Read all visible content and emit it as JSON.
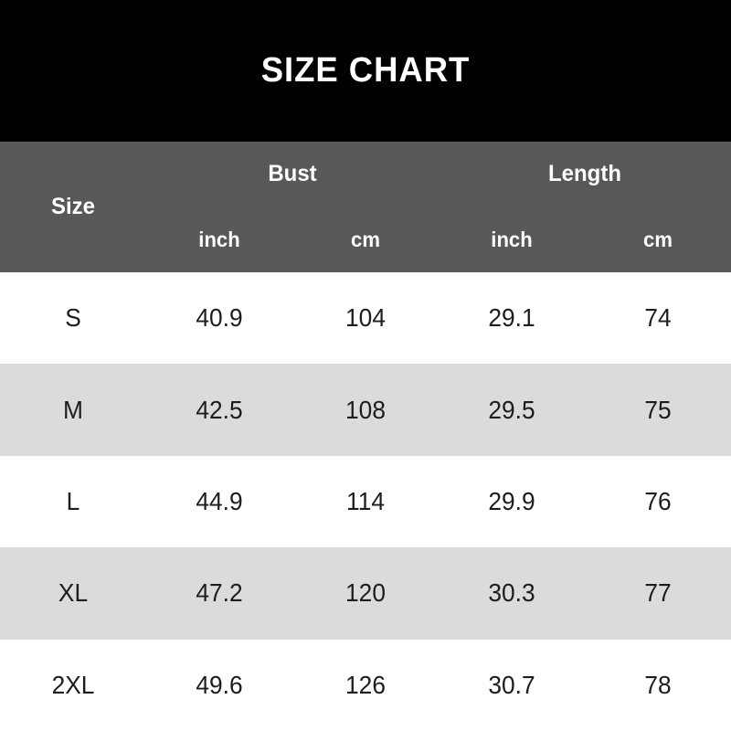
{
  "title": "SIZE CHART",
  "colors": {
    "banner_bg": "#000000",
    "banner_text": "#ffffff",
    "header_bg": "#58585a",
    "header_text": "#ffffff",
    "row_alt_bg": "#dbdbdb",
    "row_bg": "#ffffff",
    "data_text": "#1d1d1f"
  },
  "table": {
    "size_header": "Size",
    "groups": [
      {
        "label": "Bust",
        "units": [
          "inch",
          "cm"
        ]
      },
      {
        "label": "Length",
        "units": [
          "inch",
          "cm"
        ]
      }
    ],
    "rows": [
      {
        "size": "S",
        "bust_inch": "40.9",
        "bust_cm": "104",
        "length_inch": "29.1",
        "length_cm": "74"
      },
      {
        "size": "M",
        "bust_inch": "42.5",
        "bust_cm": "108",
        "length_inch": "29.5",
        "length_cm": "75"
      },
      {
        "size": "L",
        "bust_inch": "44.9",
        "bust_cm": "114",
        "length_inch": "29.9",
        "length_cm": "76"
      },
      {
        "size": "XL",
        "bust_inch": "47.2",
        "bust_cm": "120",
        "length_inch": "30.3",
        "length_cm": "77"
      },
      {
        "size": "2XL",
        "bust_inch": "49.6",
        "bust_cm": "126",
        "length_inch": "30.7",
        "length_cm": "78"
      }
    ]
  },
  "chart_data": {
    "type": "table",
    "title": "SIZE CHART",
    "columns": [
      "Size",
      "Bust inch",
      "Bust cm",
      "Length inch",
      "Length cm"
    ],
    "rows": [
      [
        "S",
        40.9,
        104,
        29.1,
        74
      ],
      [
        "M",
        42.5,
        108,
        29.5,
        75
      ],
      [
        "L",
        44.9,
        114,
        29.9,
        76
      ],
      [
        "XL",
        47.2,
        120,
        30.3,
        77
      ],
      [
        "2XL",
        49.6,
        126,
        30.7,
        78
      ]
    ]
  }
}
